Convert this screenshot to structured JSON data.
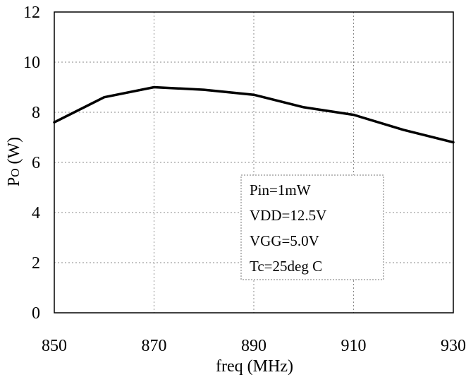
{
  "chart_data": {
    "type": "line",
    "xlabel": "freq (MHz)",
    "ylabel_main": "P",
    "ylabel_sub": "O",
    "ylabel_unit": " (W)",
    "xlim": [
      850,
      930
    ],
    "ylim": [
      0,
      12
    ],
    "xticks": [
      850,
      870,
      890,
      910,
      930
    ],
    "yticks": [
      0,
      2,
      4,
      6,
      8,
      10,
      12
    ],
    "grid": true,
    "series": [
      {
        "color": "#000000",
        "x": [
          850,
          860,
          870,
          880,
          890,
          900,
          910,
          920,
          930
        ],
        "y": [
          7.6,
          8.6,
          9.0,
          8.9,
          8.7,
          8.2,
          7.9,
          7.3,
          6.8
        ]
      }
    ],
    "annotation": {
      "lines": [
        "Pin=1mW",
        "VDD=12.5V",
        "VGG=5.0V",
        "Tc=25deg C"
      ]
    }
  }
}
